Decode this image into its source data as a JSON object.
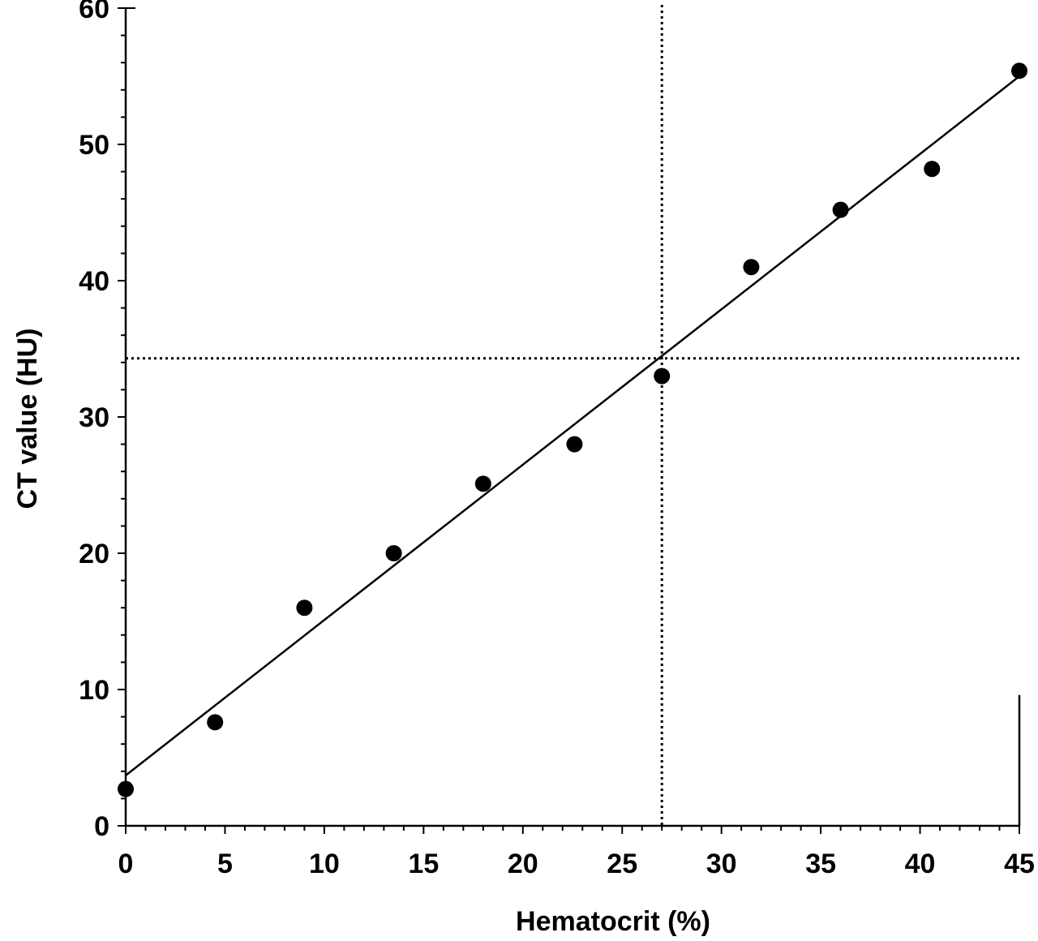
{
  "chart_data": {
    "type": "scatter",
    "title": "",
    "xlabel": "Hematocrit (%)",
    "ylabel": "CT value (HU)",
    "xlim": [
      0,
      45
    ],
    "ylim": [
      0,
      60
    ],
    "x_ticks": [
      0,
      5,
      10,
      15,
      20,
      25,
      30,
      35,
      40,
      45
    ],
    "y_ticks": [
      0,
      10,
      20,
      30,
      40,
      50,
      60
    ],
    "x_tick_labels": [
      "0",
      "5",
      "10",
      "15",
      "20",
      "25",
      "30",
      "35",
      "40",
      "45"
    ],
    "y_tick_labels": [
      "0",
      "10",
      "20",
      "30",
      "40",
      "50",
      "60"
    ],
    "grid": false,
    "points": [
      {
        "x": 0,
        "y": 2.7
      },
      {
        "x": 4.5,
        "y": 7.6
      },
      {
        "x": 9,
        "y": 16.0
      },
      {
        "x": 13.5,
        "y": 20.0
      },
      {
        "x": 18,
        "y": 25.1
      },
      {
        "x": 22.6,
        "y": 28.0
      },
      {
        "x": 27,
        "y": 33.0
      },
      {
        "x": 31.5,
        "y": 41.0
      },
      {
        "x": 36,
        "y": 45.2
      },
      {
        "x": 40.6,
        "y": 48.2
      },
      {
        "x": 45,
        "y": 55.4
      }
    ],
    "fit_line": {
      "x": [
        0,
        45
      ],
      "y": [
        3.7,
        55.0
      ]
    },
    "reference_lines": {
      "x": 27,
      "y": 34.3
    },
    "colors": {
      "marker": "#000000",
      "line": "#000000",
      "axis": "#000000"
    }
  }
}
